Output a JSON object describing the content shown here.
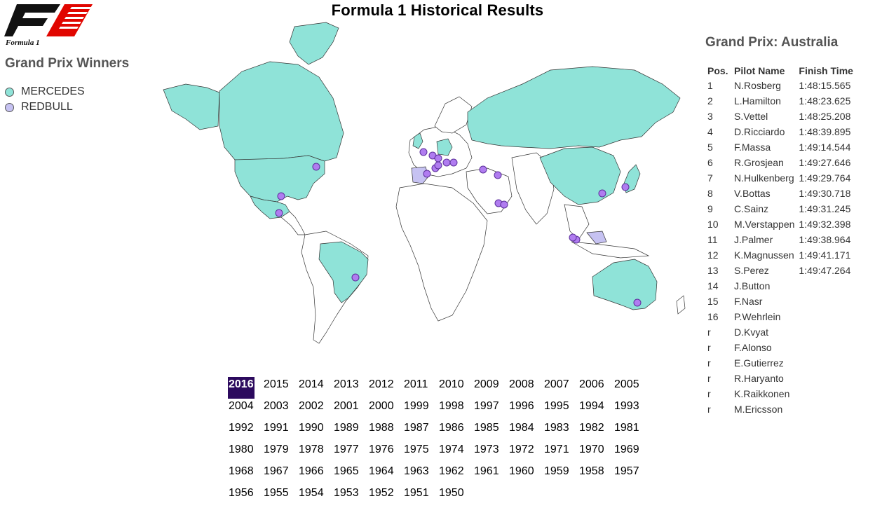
{
  "header": {
    "title": "Formula 1 Historical Results"
  },
  "logo": {
    "text": "Formula 1"
  },
  "legend": {
    "title": "Grand Prix Winners",
    "items": [
      {
        "label": "MERCEDES",
        "color": "#8fe3d8"
      },
      {
        "label": "REDBULL",
        "color": "#c6c2f2"
      }
    ]
  },
  "map": {
    "country_fill_winner": "#8fe3d8",
    "country_fill_other": "#ffffff",
    "race_marker_color": "#b07cf0"
  },
  "years": {
    "selected": "2016",
    "list": [
      "2016",
      "2015",
      "2014",
      "2013",
      "2012",
      "2011",
      "2010",
      "2009",
      "2008",
      "2007",
      "2006",
      "2005",
      "2004",
      "2003",
      "2002",
      "2001",
      "2000",
      "1999",
      "1998",
      "1997",
      "1996",
      "1995",
      "1994",
      "1993",
      "1992",
      "1991",
      "1990",
      "1989",
      "1988",
      "1987",
      "1986",
      "1985",
      "1984",
      "1983",
      "1982",
      "1981",
      "1980",
      "1979",
      "1978",
      "1977",
      "1976",
      "1975",
      "1974",
      "1973",
      "1972",
      "1971",
      "1970",
      "1969",
      "1968",
      "1967",
      "1966",
      "1965",
      "1964",
      "1963",
      "1962",
      "1961",
      "1960",
      "1959",
      "1958",
      "1957",
      "1956",
      "1955",
      "1954",
      "1953",
      "1952",
      "1951",
      "1950"
    ]
  },
  "results": {
    "title": "Grand Prix: Australia",
    "columns": [
      "Pos.",
      "Pilot Name",
      "Finish Time"
    ],
    "rows": [
      {
        "pos": "1",
        "name": "N.Rosberg",
        "time": "1:48:15.565"
      },
      {
        "pos": "2",
        "name": "L.Hamilton",
        "time": "1:48:23.625"
      },
      {
        "pos": "3",
        "name": "S.Vettel",
        "time": "1:48:25.208"
      },
      {
        "pos": "4",
        "name": "D.Ricciardo",
        "time": "1:48:39.895"
      },
      {
        "pos": "5",
        "name": "F.Massa",
        "time": "1:49:14.544"
      },
      {
        "pos": "6",
        "name": "R.Grosjean",
        "time": "1:49:27.646"
      },
      {
        "pos": "7",
        "name": "N.Hulkenberg",
        "time": "1:49:29.764"
      },
      {
        "pos": "8",
        "name": "V.Bottas",
        "time": "1:49:30.718"
      },
      {
        "pos": "9",
        "name": "C.Sainz",
        "time": "1:49:31.245"
      },
      {
        "pos": "10",
        "name": "M.Verstappen",
        "time": "1:49:32.398"
      },
      {
        "pos": "11",
        "name": "J.Palmer",
        "time": "1:49:38.964"
      },
      {
        "pos": "12",
        "name": "K.Magnussen",
        "time": "1:49:41.171"
      },
      {
        "pos": "13",
        "name": "S.Perez",
        "time": "1:49:47.264"
      },
      {
        "pos": "14",
        "name": "J.Button",
        "time": ""
      },
      {
        "pos": "15",
        "name": "F.Nasr",
        "time": ""
      },
      {
        "pos": "16",
        "name": "P.Wehrlein",
        "time": ""
      },
      {
        "pos": "r",
        "name": "D.Kvyat",
        "time": ""
      },
      {
        "pos": "r",
        "name": "F.Alonso",
        "time": ""
      },
      {
        "pos": "r",
        "name": "E.Gutierrez",
        "time": ""
      },
      {
        "pos": "r",
        "name": "R.Haryanto",
        "time": ""
      },
      {
        "pos": "r",
        "name": "K.Raikkonen",
        "time": ""
      },
      {
        "pos": "r",
        "name": "M.Ericsson",
        "time": ""
      }
    ]
  }
}
